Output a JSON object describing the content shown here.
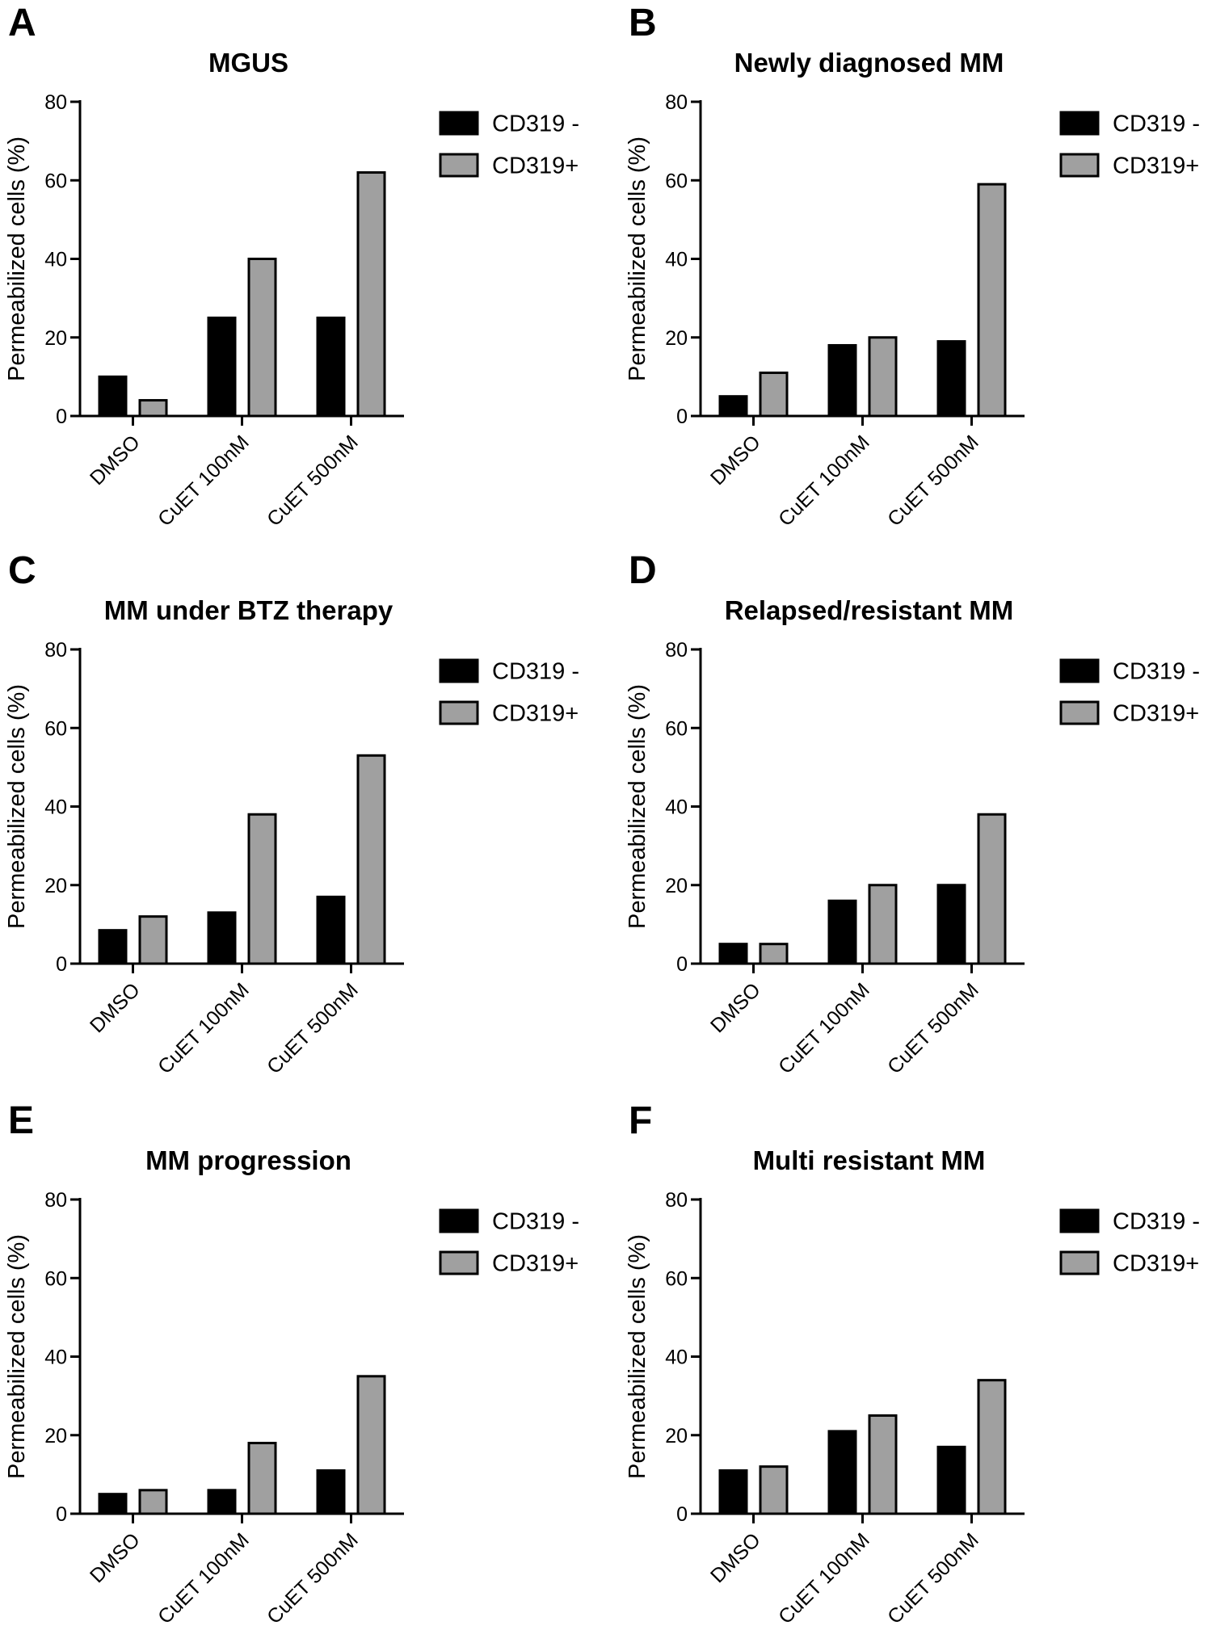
{
  "colors": {
    "CD319 -": "#000000",
    "CD319+": "#a0a0a0"
  },
  "chart_data": [
    {
      "panel": "A",
      "type": "bar",
      "title": "MGUS",
      "ylabel": "Permeabilized cells (%)",
      "xlabel": "",
      "categories": [
        "DMSO",
        "CuET 100nM",
        "CuET 500nM"
      ],
      "yticks": [
        0,
        20,
        40,
        60,
        80
      ],
      "ylim": [
        0,
        80
      ],
      "series": [
        {
          "name": "CD319 -",
          "values": [
            10,
            25,
            25
          ]
        },
        {
          "name": "CD319+",
          "values": [
            4,
            40,
            62
          ]
        }
      ]
    },
    {
      "panel": "B",
      "type": "bar",
      "title": "Newly diagnosed MM",
      "ylabel": "Permeabilized cells (%)",
      "xlabel": "",
      "categories": [
        "DMSO",
        "CuET 100nM",
        "CuET 500nM"
      ],
      "yticks": [
        0,
        20,
        40,
        60,
        80
      ],
      "ylim": [
        0,
        80
      ],
      "series": [
        {
          "name": "CD319 -",
          "values": [
            5,
            18,
            19
          ]
        },
        {
          "name": "CD319+",
          "values": [
            11,
            20,
            59
          ]
        }
      ]
    },
    {
      "panel": "C",
      "type": "bar",
      "title": "MM under  BTZ therapy",
      "ylabel": "Permeabilized cells (%)",
      "xlabel": "",
      "categories": [
        "DMSO",
        "CuET 100nM",
        "CuET 500nM"
      ],
      "yticks": [
        0,
        20,
        40,
        60,
        80
      ],
      "ylim": [
        0,
        80
      ],
      "series": [
        {
          "name": "CD319 -",
          "values": [
            8.5,
            13,
            17
          ]
        },
        {
          "name": "CD319+",
          "values": [
            12,
            38,
            53
          ]
        }
      ]
    },
    {
      "panel": "D",
      "type": "bar",
      "title": "Relapsed/resistant MM",
      "ylabel": "Permeabilized cells (%)",
      "xlabel": "",
      "categories": [
        "DMSO",
        "CuET 100nM",
        "CuET 500nM"
      ],
      "yticks": [
        0,
        20,
        40,
        60,
        80
      ],
      "ylim": [
        0,
        80
      ],
      "series": [
        {
          "name": "CD319 -",
          "values": [
            5,
            16,
            20
          ]
        },
        {
          "name": "CD319+",
          "values": [
            5,
            20,
            38
          ]
        }
      ]
    },
    {
      "panel": "E",
      "type": "bar",
      "title": "MM progression",
      "ylabel": "Permeabilized cells (%)",
      "xlabel": "",
      "categories": [
        "DMSO",
        "CuET 100nM",
        "CuET 500nM"
      ],
      "yticks": [
        0,
        20,
        40,
        60,
        80
      ],
      "ylim": [
        0,
        80
      ],
      "series": [
        {
          "name": "CD319 -",
          "values": [
            5,
            6,
            11
          ]
        },
        {
          "name": "CD319+",
          "values": [
            6,
            18,
            35
          ]
        }
      ]
    },
    {
      "panel": "F",
      "type": "bar",
      "title": "Multi resistant MM",
      "ylabel": "Permeabilized cells (%)",
      "xlabel": "",
      "categories": [
        "DMSO",
        "CuET 100nM",
        "CuET 500nM"
      ],
      "yticks": [
        0,
        20,
        40,
        60,
        80
      ],
      "ylim": [
        0,
        80
      ],
      "series": [
        {
          "name": "CD319 -",
          "values": [
            11,
            21,
            17
          ]
        },
        {
          "name": "CD319+",
          "values": [
            12,
            25,
            34
          ]
        }
      ]
    }
  ]
}
